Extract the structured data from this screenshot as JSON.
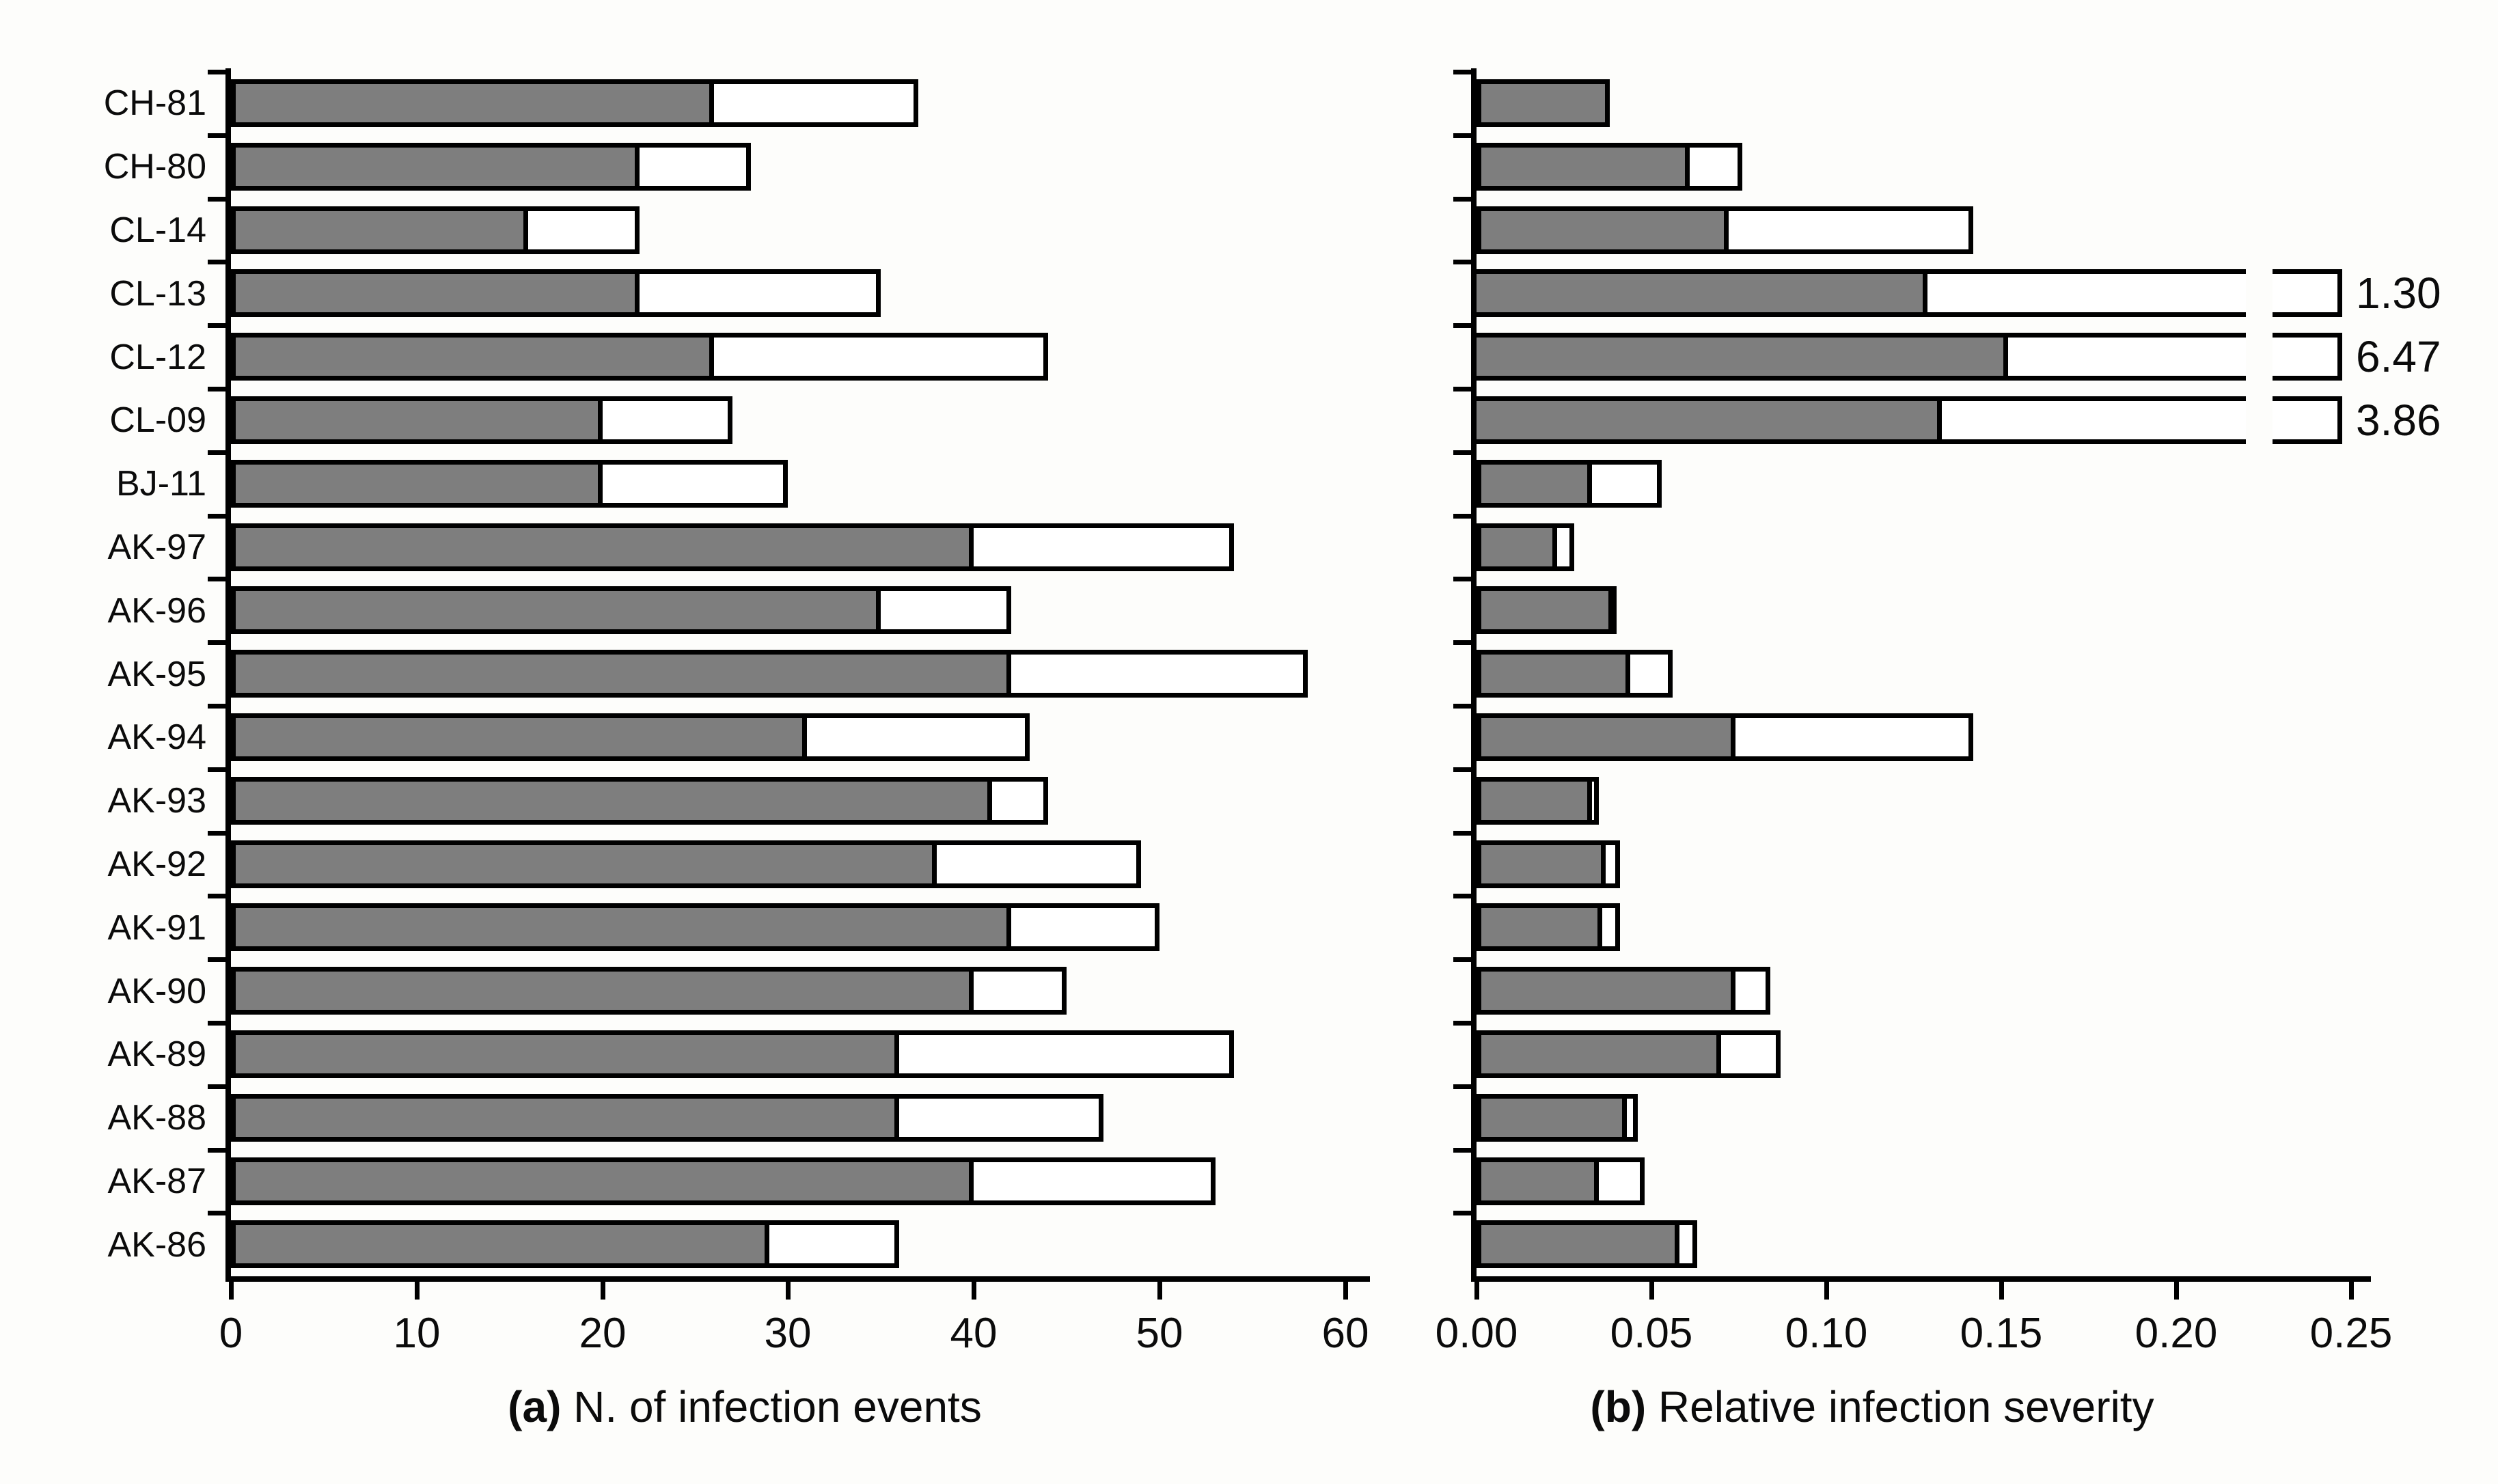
{
  "figure": {
    "background": "#fdfdfb",
    "bar_fill_gray": "#7e7e7e",
    "bar_fill_white": "#ffffff",
    "line_color": "#000000"
  },
  "categories": [
    "CH-81",
    "CH-80",
    "CL-14",
    "CL-13",
    "CL-12",
    "CL-09",
    "BJ-11",
    "AK-97",
    "AK-96",
    "AK-95",
    "AK-94",
    "AK-93",
    "AK-92",
    "AK-91",
    "AK-90",
    "AK-89",
    "AK-88",
    "AK-87",
    "AK-86"
  ],
  "chart_data": [
    {
      "type": "bar",
      "orientation": "horizontal",
      "panel": "a",
      "tag": "(a)",
      "title": "N. of infection events",
      "xlim": [
        0,
        60
      ],
      "xticks": [
        0,
        10,
        20,
        30,
        40,
        50,
        60
      ],
      "xtick_labels": [
        "0",
        "10",
        "20",
        "30",
        "40",
        "50",
        "60"
      ],
      "grid": false,
      "legend": "none",
      "categories": [
        "CH-81",
        "CH-80",
        "CL-14",
        "CL-13",
        "CL-12",
        "CL-09",
        "BJ-11",
        "AK-97",
        "AK-96",
        "AK-95",
        "AK-94",
        "AK-93",
        "AK-92",
        "AK-91",
        "AK-90",
        "AK-89",
        "AK-88",
        "AK-87",
        "AK-86"
      ],
      "series": [
        {
          "name": "gray-segment",
          "values": [
            26,
            22,
            16,
            22,
            26,
            20,
            20,
            40,
            35,
            42,
            31,
            41,
            38,
            42,
            40,
            36,
            36,
            40,
            29
          ]
        },
        {
          "name": "total-bar",
          "values": [
            37,
            28,
            22,
            35,
            44,
            27,
            30,
            54,
            42,
            58,
            43,
            44,
            49,
            50,
            45,
            54,
            47,
            53,
            36
          ]
        }
      ]
    },
    {
      "type": "bar",
      "orientation": "horizontal",
      "panel": "b",
      "tag": "(b)",
      "title": "Relative infection severity",
      "xlim": [
        0,
        0.25
      ],
      "xticks": [
        0,
        0.05,
        0.1,
        0.15,
        0.2,
        0.25
      ],
      "xtick_labels": [
        "0.00",
        "0.05",
        "0.10",
        "0.15",
        "0.20",
        "0.25"
      ],
      "grid": false,
      "legend": "none",
      "categories": [
        "CH-81",
        "CH-80",
        "CL-14",
        "CL-13",
        "CL-12",
        "CL-09",
        "BJ-11",
        "AK-97",
        "AK-96",
        "AK-95",
        "AK-94",
        "AK-93",
        "AK-92",
        "AK-91",
        "AK-90",
        "AK-89",
        "AK-88",
        "AK-87",
        "AK-86"
      ],
      "series": [
        {
          "name": "gray-segment",
          "values": [
            0.038,
            0.061,
            0.072,
            0.129,
            0.152,
            0.133,
            0.033,
            0.023,
            0.039,
            0.044,
            0.074,
            0.033,
            0.037,
            0.036,
            0.074,
            0.07,
            0.043,
            0.035,
            0.058
          ]
        },
        {
          "name": "total-bar",
          "values": [
            0.038,
            0.076,
            0.142,
            1.3,
            6.47,
            3.86,
            0.053,
            0.028,
            0.04,
            0.056,
            0.142,
            0.035,
            0.041,
            0.041,
            0.084,
            0.087,
            0.046,
            0.048,
            0.063
          ]
        }
      ],
      "offscale_bars": [
        {
          "category": "CL-13",
          "label": "1.30"
        },
        {
          "category": "CL-12",
          "label": "6.47"
        },
        {
          "category": "CL-09",
          "label": "3.86"
        }
      ]
    }
  ]
}
